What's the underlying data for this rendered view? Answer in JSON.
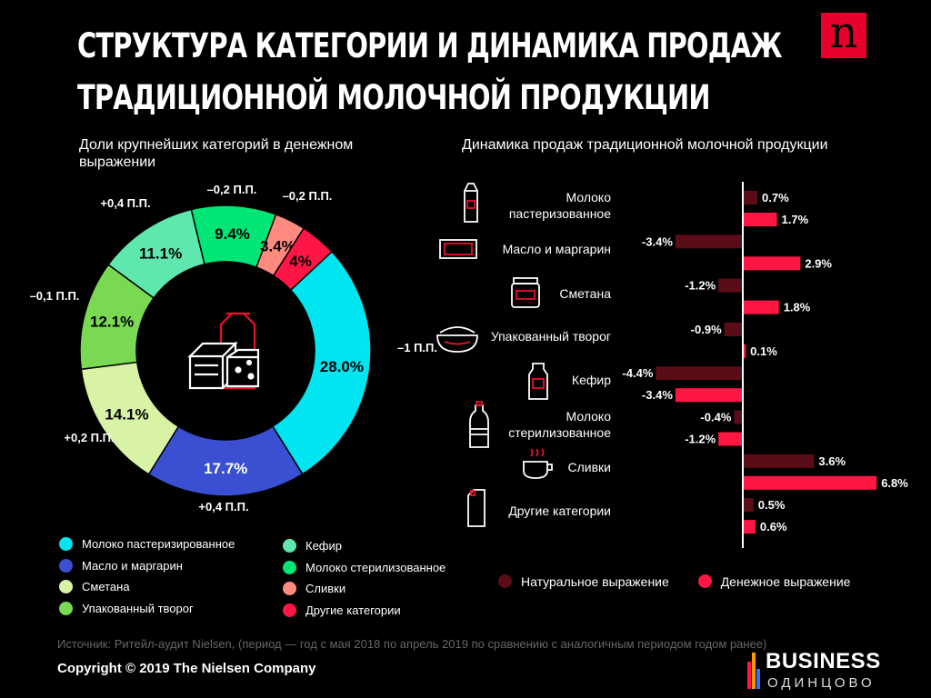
{
  "header": {
    "title_line1": "СТРУКТУРА КАТЕГОРИИ И ДИНАМИКА ПРОДАЖ",
    "title_line2": "ТРАДИЦИОННОЙ МОЛОЧНОЙ ПРОДУКЦИИ",
    "logo_letter": "n"
  },
  "colors": {
    "pasteurized_milk": "#00e5f0",
    "butter": "#3a4fd2",
    "sour_cream": "#d8f2a6",
    "cottage_cheese": "#7ad952",
    "kefir": "#5ee8ad",
    "sterilized_milk": "#00e676",
    "cream": "#ff8a80",
    "other": "#ff1546",
    "natural": "#5a0c17",
    "money": "#ff1744"
  },
  "chart_data": [
    {
      "type": "pie",
      "title": "Доли крупнейших категорий в денежном выражении",
      "slices": [
        {
          "name": "Молоко пастеризированное",
          "value": 28.0,
          "label": "28.0%",
          "change": "–1 П.П.",
          "color_key": "pasteurized_milk"
        },
        {
          "name": "Масло и маргарин",
          "value": 17.7,
          "label": "17.7%",
          "change": "+0,4 П.П.",
          "color_key": "butter"
        },
        {
          "name": "Сметана",
          "value": 14.1,
          "label": "14.1%",
          "change": "+0,2 П.П.",
          "color_key": "sour_cream"
        },
        {
          "name": "Упакованный творог",
          "value": 12.1,
          "label": "12.1%",
          "change": "–0,1 П.П.",
          "color_key": "cottage_cheese"
        },
        {
          "name": "Кефир",
          "value": 11.1,
          "label": "11.1%",
          "change": "+0,4 П.П.",
          "color_key": "kefir"
        },
        {
          "name": "Молоко стерилизованное",
          "value": 9.4,
          "label": "9.4%",
          "change": "–0,2 П.П.",
          "color_key": "sterilized_milk"
        },
        {
          "name": "Сливки",
          "value": 3.4,
          "label": "3.4%",
          "change": "–0,2 П.П.",
          "color_key": "cream"
        },
        {
          "name": "Другие категории",
          "value": 4,
          "label": "4%",
          "change": "",
          "color_key": "other"
        }
      ],
      "legend": [
        [
          "Молоко пастеризированное",
          "Масло и маргарин",
          "Сметана",
          "Упакованный творог"
        ],
        [
          "Кефир",
          "Молоко стерилизованное",
          "Сливки",
          "Другие категории"
        ]
      ]
    },
    {
      "type": "bar",
      "orientation": "horizontal",
      "title": "Динамика продаж традиционной молочной продукции",
      "categories": [
        {
          "line1": "Молоко",
          "line2": "пастеризованное",
          "icon": "milk-carton-icon"
        },
        {
          "line1": "Масло и маргарин",
          "line2": "",
          "icon": "butter-icon"
        },
        {
          "line1": "Сметана",
          "line2": "",
          "icon": "jar-icon"
        },
        {
          "line1": "Упакованный творог",
          "line2": "",
          "icon": "bowl-icon"
        },
        {
          "line1": "Кефир",
          "line2": "",
          "icon": "bottle-icon"
        },
        {
          "line1": "Молоко",
          "line2": "стерилизованное",
          "icon": "water-bottle-icon"
        },
        {
          "line1": "Сливки",
          "line2": "",
          "icon": "cup-icon"
        },
        {
          "line1": "Другие категории",
          "line2": "",
          "icon": "package-icon"
        }
      ],
      "series": [
        {
          "name": "Натуральное выражение",
          "color_key": "natural",
          "values": [
            0.7,
            -3.4,
            -1.2,
            -0.9,
            -4.4,
            -0.4,
            3.6,
            0.5
          ],
          "labels": [
            "0.7%",
            "-3.4%",
            "-1.2%",
            "-0.9%",
            "-4.4%",
            "-0.4%",
            "3.6%",
            "0.5%"
          ]
        },
        {
          "name": "Денежное выражение",
          "color_key": "money",
          "values": [
            1.7,
            2.9,
            1.8,
            0.1,
            -3.4,
            -1.2,
            6.8,
            0.6
          ],
          "labels": [
            "1.7%",
            "2.9%",
            "1.8%",
            "0.1%",
            "-3.4%",
            "-1.2%",
            "6.8%",
            "0.6%"
          ]
        }
      ]
    }
  ],
  "footer": {
    "source": "Источник: Ритейл-аудит Nielsen, (период — год с мая 2018 по апрель 2019 по сравнению с аналогичным периодом годом ранее)",
    "copyright": "Copyright © 2019 The Nielsen Company",
    "watermark_line1": "BUSINESS",
    "watermark_line2": "ОДИНЦОВО"
  }
}
